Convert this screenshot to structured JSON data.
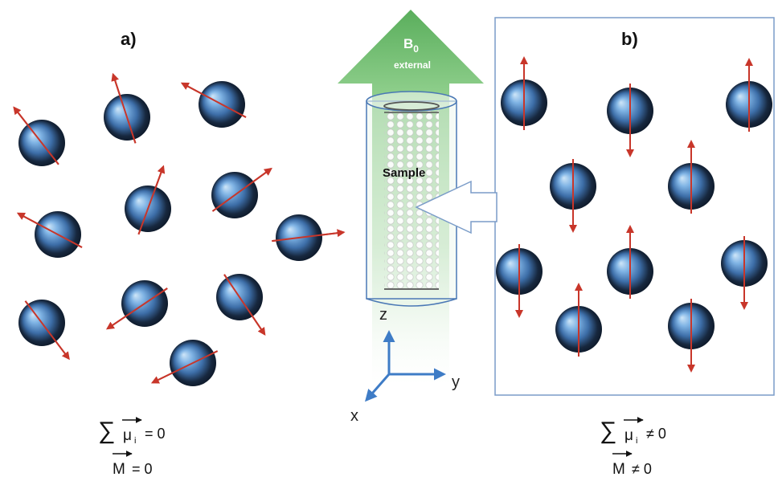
{
  "panel_a": {
    "label": "a)",
    "sum_symbol": "∑",
    "sum_mu": "μ",
    "sum_index": "i",
    "sum_relation": "= 0",
    "magnetization_symbol": "M",
    "magnetization_relation": "= 0",
    "state": "random orientations"
  },
  "panel_b": {
    "label": "b)",
    "sum_symbol": "∑",
    "sum_mu": "μ",
    "sum_index": "i",
    "sum_relation": "≠ 0",
    "magnetization_symbol": "M",
    "magnetization_relation": "≠ 0",
    "state": "aligned parallel / antiparallel to field"
  },
  "field": {
    "symbol": "B",
    "subscript": "0",
    "caption": "external"
  },
  "sample": {
    "label": "Sample"
  },
  "axes": {
    "z": "z",
    "y": "y",
    "x": "x"
  },
  "colors": {
    "field_arrow": "#6ab86b",
    "spin_arrow": "#c8362a",
    "sphere_light": "#a9d1f2",
    "sphere_mid": "#3f79b6",
    "sphere_dark": "#0c1a2e",
    "axes": "#3e7cc6",
    "panel_border": "#7a9cc8"
  }
}
